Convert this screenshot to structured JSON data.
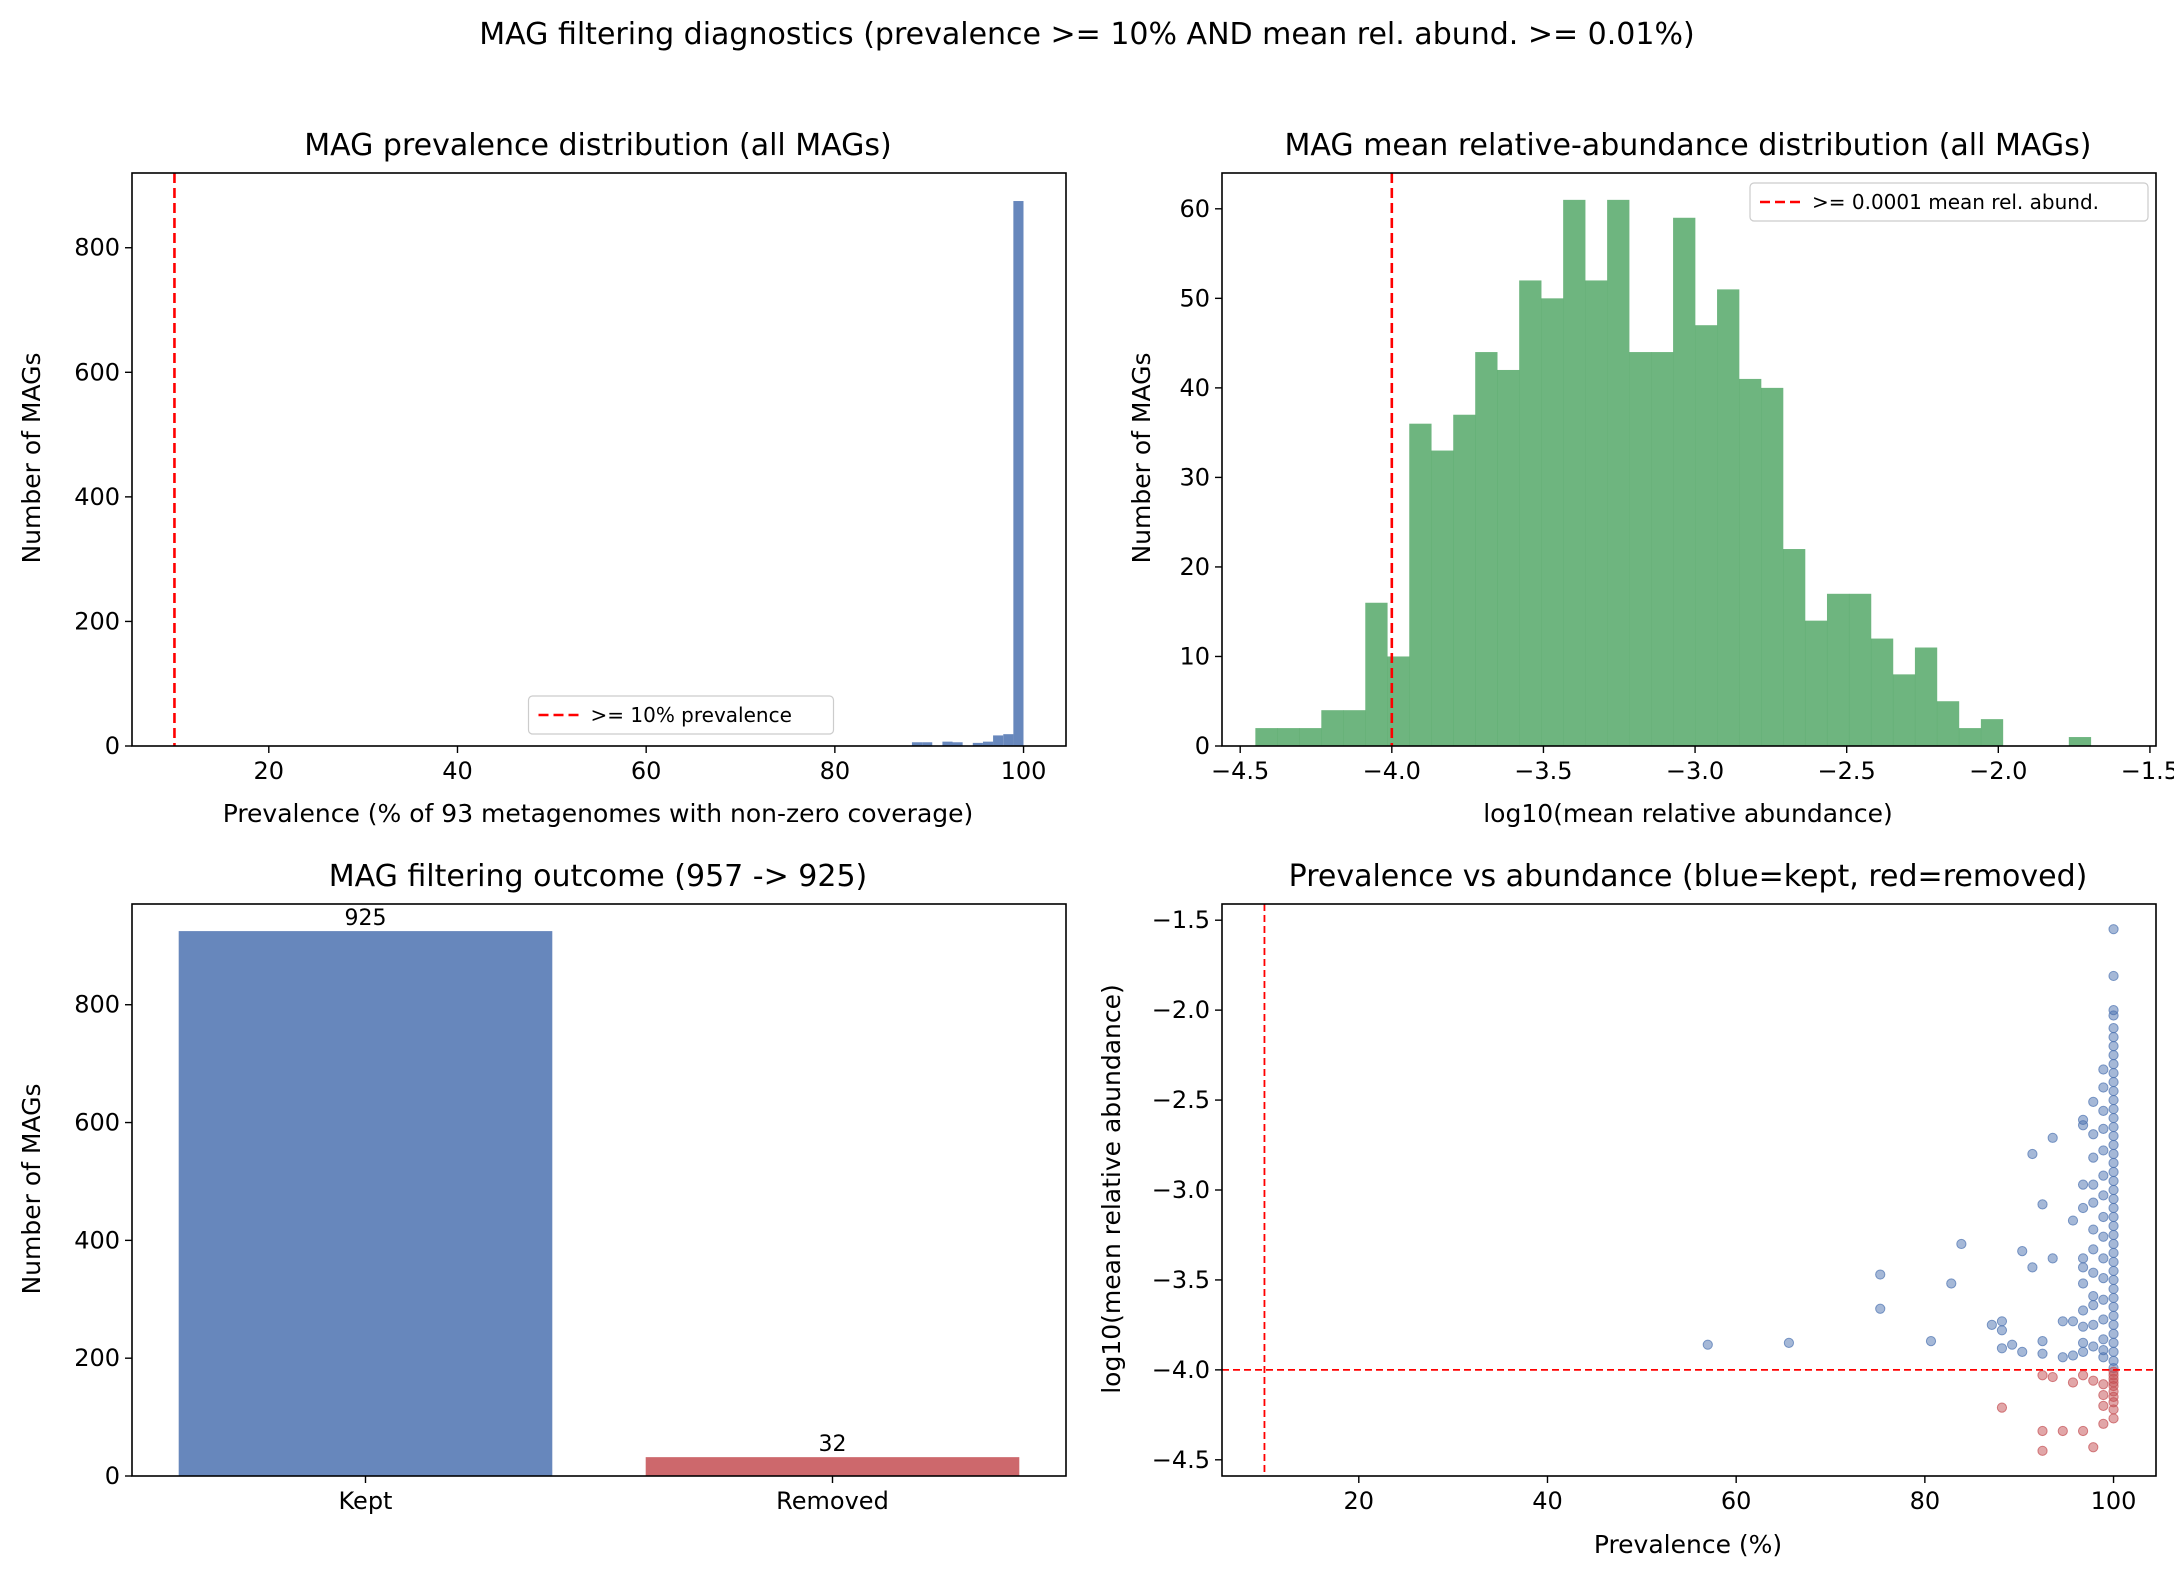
{
  "suptitle": "MAG filtering diagnostics (prevalence >= 10% AND mean rel. abund. >= 0.01%)",
  "colors": {
    "blue": "#4c72b0",
    "green": "#55a868",
    "red": "#c44e52",
    "threshold": "#ff0000"
  },
  "chart_data": [
    {
      "id": "prevalence_hist",
      "type": "bar",
      "title": "MAG prevalence distribution (all MAGs)",
      "xlabel": "Prevalence (% of 93 metagenomes with non-zero coverage)",
      "ylabel": "Number of MAGs",
      "xlim": [
        5.5,
        104.5
      ],
      "ylim": [
        0,
        920
      ],
      "xticks": [
        20,
        40,
        60,
        80,
        100
      ],
      "yticks": [
        0,
        200,
        400,
        600,
        800
      ],
      "bin_width": 1.075,
      "bins": [
        {
          "x0": 88.17,
          "count": 6
        },
        {
          "x0": 89.25,
          "count": 6
        },
        {
          "x0": 90.32,
          "count": 0
        },
        {
          "x0": 91.4,
          "count": 7
        },
        {
          "x0": 92.47,
          "count": 6
        },
        {
          "x0": 93.55,
          "count": 0
        },
        {
          "x0": 94.62,
          "count": 5
        },
        {
          "x0": 95.7,
          "count": 7
        },
        {
          "x0": 96.77,
          "count": 17
        },
        {
          "x0": 97.85,
          "count": 19
        },
        {
          "x0": 98.92,
          "count": 875
        }
      ],
      "threshold": {
        "axis": "x",
        "value": 10,
        "label": ">= 10% prevalence"
      },
      "legend_position": "lower center",
      "color": "#4c72b0"
    },
    {
      "id": "abundance_hist",
      "type": "bar",
      "title": "MAG mean relative-abundance distribution (all MAGs)",
      "xlabel": "log10(mean relative abundance)",
      "ylabel": "Number of MAGs",
      "xlim": [
        -4.56,
        -1.48
      ],
      "ylim": [
        0,
        64
      ],
      "xticks": [
        -4.5,
        -4.0,
        -3.5,
        -3.0,
        -2.5,
        -2.0,
        -1.5
      ],
      "xtick_labels": [
        "−4.5",
        "−4.0",
        "−3.5",
        "−3.0",
        "−2.5",
        "−2.0",
        "−1.5"
      ],
      "yticks": [
        0,
        10,
        20,
        30,
        40,
        50,
        60
      ],
      "bin_start": -4.45,
      "bin_width": 0.0725,
      "counts": [
        2,
        2,
        2,
        4,
        4,
        16,
        10,
        36,
        33,
        37,
        44,
        42,
        52,
        50,
        61,
        52,
        61,
        44,
        44,
        59,
        47,
        51,
        41,
        40,
        22,
        14,
        17,
        17,
        12,
        8,
        11,
        5,
        2,
        3,
        0,
        0,
        0,
        1,
        0,
        0,
        0,
        0,
        1
      ],
      "threshold": {
        "axis": "x",
        "value": -4.0,
        "label": ">= 0.0001 mean rel. abund."
      },
      "legend_position": "upper right",
      "color": "#55a868"
    },
    {
      "id": "outcome_bars",
      "type": "bar",
      "title": "MAG filtering outcome (957 -> 925)",
      "xlabel": "",
      "ylabel": "Number of MAGs",
      "categories": [
        "Kept",
        "Removed"
      ],
      "values": [
        925,
        32
      ],
      "value_labels": [
        "925",
        "32"
      ],
      "bar_colors": [
        "#4c72b0",
        "#c44e52"
      ],
      "ylim": [
        0,
        971
      ],
      "yticks": [
        0,
        200,
        400,
        600,
        800
      ]
    },
    {
      "id": "scatter",
      "type": "scatter",
      "title": "Prevalence vs abundance (blue=kept, red=removed)",
      "xlabel": "Prevalence (%)",
      "ylabel": "log10(mean relative abundance)",
      "xlim": [
        5.5,
        104.5
      ],
      "ylim": [
        -4.59,
        -1.41
      ],
      "xticks": [
        20,
        40,
        60,
        80,
        100
      ],
      "yticks": [
        -4.5,
        -4.0,
        -3.5,
        -3.0,
        -2.5,
        -2.0,
        -1.5
      ],
      "ytick_labels": [
        "−4.5",
        "−4.0",
        "−3.5",
        "−3.0",
        "−2.5",
        "−2.0",
        "−1.5"
      ],
      "thresholds": {
        "x": 10,
        "y": -4.0
      },
      "series": [
        {
          "color": "#4c72b0",
          "points": [
            [
              56.99,
              -3.86
            ],
            [
              65.59,
              -3.85
            ],
            [
              75.27,
              -3.47
            ],
            [
              75.27,
              -3.66
            ],
            [
              80.65,
              -3.84
            ],
            [
              82.8,
              -3.52
            ],
            [
              83.87,
              -3.3
            ],
            [
              87.1,
              -3.75
            ],
            [
              88.17,
              -3.73
            ],
            [
              88.17,
              -3.78
            ],
            [
              88.17,
              -3.88
            ],
            [
              89.25,
              -3.86
            ],
            [
              90.32,
              -3.9
            ],
            [
              90.32,
              -3.34
            ],
            [
              91.4,
              -2.8
            ],
            [
              91.4,
              -3.43
            ],
            [
              92.47,
              -3.08
            ],
            [
              92.47,
              -3.84
            ],
            [
              92.47,
              -3.91
            ],
            [
              93.55,
              -2.71
            ],
            [
              93.55,
              -3.38
            ],
            [
              94.62,
              -3.73
            ],
            [
              94.62,
              -3.93
            ],
            [
              95.7,
              -3.17
            ],
            [
              95.7,
              -3.92
            ],
            [
              95.7,
              -3.73
            ],
            [
              96.77,
              -3.9
            ],
            [
              96.77,
              -3.85
            ],
            [
              96.77,
              -3.67
            ],
            [
              96.77,
              -3.52
            ],
            [
              96.77,
              -3.38
            ],
            [
              96.77,
              -3.1
            ],
            [
              96.77,
              -2.97
            ],
            [
              96.77,
              -2.61
            ],
            [
              96.77,
              -2.64
            ],
            [
              96.77,
              -3.76
            ],
            [
              96.77,
              -3.43
            ],
            [
              97.85,
              -3.87
            ],
            [
              97.85,
              -3.75
            ],
            [
              97.85,
              -3.59
            ],
            [
              97.85,
              -3.46
            ],
            [
              97.85,
              -3.33
            ],
            [
              97.85,
              -3.22
            ],
            [
              97.85,
              -3.07
            ],
            [
              97.85,
              -2.97
            ],
            [
              97.85,
              -2.82
            ],
            [
              97.85,
              -2.69
            ],
            [
              97.85,
              -2.51
            ],
            [
              97.85,
              -3.64
            ],
            [
              98.92,
              -3.93
            ],
            [
              98.92,
              -3.83
            ],
            [
              98.92,
              -3.72
            ],
            [
              98.92,
              -3.61
            ],
            [
              98.92,
              -3.49
            ],
            [
              98.92,
              -3.38
            ],
            [
              98.92,
              -3.26
            ],
            [
              98.92,
              -3.15
            ],
            [
              98.92,
              -3.03
            ],
            [
              98.92,
              -2.92
            ],
            [
              98.92,
              -2.78
            ],
            [
              98.92,
              -2.66
            ],
            [
              98.92,
              -2.56
            ],
            [
              98.92,
              -2.43
            ],
            [
              98.92,
              -2.33
            ],
            [
              98.92,
              -3.89
            ],
            [
              100,
              -1.55
            ],
            [
              100,
              -1.81
            ],
            [
              100,
              -2.0
            ],
            [
              100,
              -2.03
            ],
            [
              100,
              -2.1
            ],
            [
              100,
              -2.15
            ],
            [
              100,
              -2.2
            ],
            [
              100,
              -2.25
            ],
            [
              100,
              -2.3
            ],
            [
              100,
              -2.35
            ],
            [
              100,
              -2.4
            ],
            [
              100,
              -2.45
            ],
            [
              100,
              -2.5
            ],
            [
              100,
              -2.55
            ],
            [
              100,
              -2.6
            ],
            [
              100,
              -2.65
            ],
            [
              100,
              -2.7
            ],
            [
              100,
              -2.75
            ],
            [
              100,
              -2.8
            ],
            [
              100,
              -2.85
            ],
            [
              100,
              -2.9
            ],
            [
              100,
              -2.95
            ],
            [
              100,
              -3.0
            ],
            [
              100,
              -3.05
            ],
            [
              100,
              -3.1
            ],
            [
              100,
              -3.15
            ],
            [
              100,
              -3.2
            ],
            [
              100,
              -3.25
            ],
            [
              100,
              -3.3
            ],
            [
              100,
              -3.35
            ],
            [
              100,
              -3.4
            ],
            [
              100,
              -3.45
            ],
            [
              100,
              -3.5
            ],
            [
              100,
              -3.55
            ],
            [
              100,
              -3.6
            ],
            [
              100,
              -3.65
            ],
            [
              100,
              -3.7
            ],
            [
              100,
              -3.75
            ],
            [
              100,
              -3.8
            ],
            [
              100,
              -3.85
            ],
            [
              100,
              -3.9
            ],
            [
              100,
              -3.95
            ],
            [
              100,
              -3.99
            ]
          ]
        },
        {
          "color": "#c44e52",
          "points": [
            [
              88.17,
              -4.21
            ],
            [
              92.47,
              -4.34
            ],
            [
              92.47,
              -4.45
            ],
            [
              92.47,
              -4.03
            ],
            [
              93.55,
              -4.04
            ],
            [
              94.62,
              -4.34
            ],
            [
              95.7,
              -4.07
            ],
            [
              96.77,
              -4.03
            ],
            [
              96.77,
              -4.34
            ],
            [
              97.85,
              -4.43
            ],
            [
              97.85,
              -4.06
            ],
            [
              98.92,
              -4.08
            ],
            [
              98.92,
              -4.14
            ],
            [
              98.92,
              -4.3
            ],
            [
              98.92,
              -4.2
            ],
            [
              100,
              -4.01
            ],
            [
              100,
              -4.03
            ],
            [
              100,
              -4.05
            ],
            [
              100,
              -4.07
            ],
            [
              100,
              -4.09
            ],
            [
              100,
              -4.12
            ],
            [
              100,
              -4.15
            ],
            [
              100,
              -4.18
            ],
            [
              100,
              -4.22
            ],
            [
              100,
              -4.27
            ]
          ]
        }
      ]
    }
  ]
}
